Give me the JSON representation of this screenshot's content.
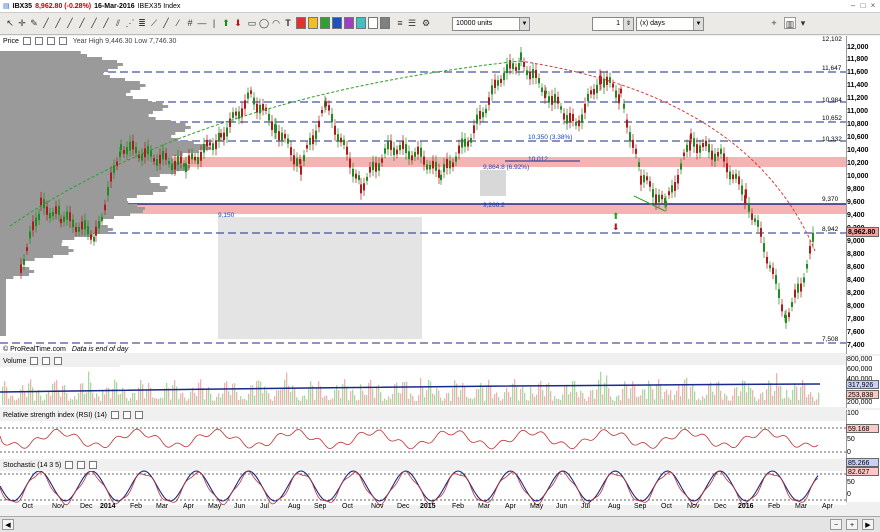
{
  "title_bar": {
    "symbol": "IBX35",
    "change": "8,962.80 (-0.28%)",
    "date": "16-Mar-2016",
    "name": "IBEX35 Index"
  },
  "toolbar": {
    "units": "10000 units",
    "period_value": "1",
    "period_unit": "(x) days"
  },
  "price_panel": {
    "label": "Price",
    "range_text": "Year High 9,446.30 Low 7,746.30",
    "credit": "© ProRealTime.com",
    "note": "Data is end of day",
    "y_ticks": [
      "12,000",
      "11,800",
      "11,600",
      "11,400",
      "11,200",
      "11,000",
      "10,800",
      "10,600",
      "10,400",
      "10,200",
      "10,000",
      "9,800",
      "9,600",
      "9,400",
      "9,200",
      "9,000",
      "8,800",
      "8,600",
      "8,400",
      "8,200",
      "8,000",
      "7,800",
      "7,600",
      "7,400"
    ],
    "level_labels": [
      "12,102",
      "11,647",
      "10,984",
      "10,652",
      "10,332",
      "9,370",
      "8,942",
      "7,508"
    ],
    "last_price": "8,962.80",
    "annotations": [
      "10,350 (3.38%)",
      "10,012",
      "9,864.8 (6.92%)",
      "9,266.2",
      "9,150"
    ]
  },
  "volume_panel": {
    "label": "Volume",
    "y_ticks": [
      "800,000",
      "600,000",
      "400,000",
      "200,000"
    ],
    "tag_blue": "317,926",
    "tag_red": "253,838"
  },
  "rsi_panel": {
    "label": "Relative strength index (RSI) (14)",
    "y_ticks": [
      "100",
      "50",
      "0"
    ],
    "tag": "59.168"
  },
  "stoch_panel": {
    "label": "Stochastic (14 3 5)",
    "y_ticks": [
      "100",
      "50",
      "0"
    ],
    "tag_blue": "85.266",
    "tag_red": "82.627"
  },
  "x_axis": [
    "Oct",
    "Nov",
    "Dec",
    "2014",
    "Feb",
    "Mar",
    "Apr",
    "May",
    "Jun",
    "Jul",
    "Aug",
    "Sep",
    "Oct",
    "Nov",
    "Dec",
    "2015",
    "Feb",
    "Mar",
    "Apr",
    "May",
    "Jun",
    "Jul",
    "Aug",
    "Sep",
    "Oct",
    "Nov",
    "Dec",
    "2016",
    "Feb",
    "Mar",
    "Apr"
  ],
  "colors": {
    "price_up": "#1e8c1e",
    "price_down": "#b01a1a",
    "level_line": "#1a2a8a",
    "resistance_band": "#f4a0a0",
    "volume_bar": "#a8d8a0",
    "rsi_line": "#c03030",
    "stoch_blue": "#1a2a8a"
  }
}
